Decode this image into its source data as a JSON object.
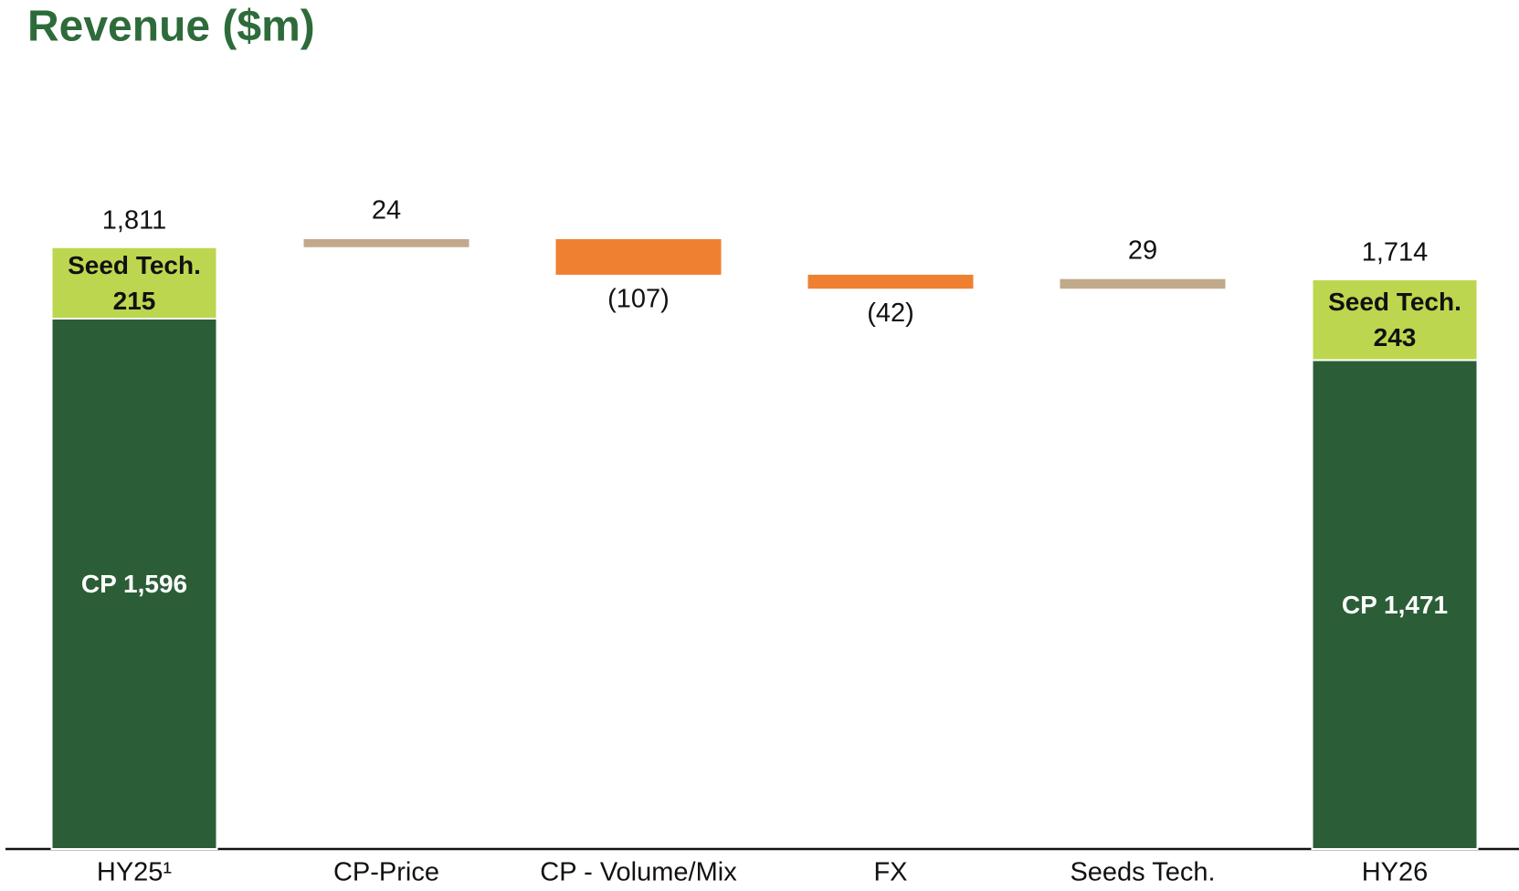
{
  "chart_data": {
    "type": "waterfall",
    "title": "Revenue ($m)",
    "categories": [
      "HY25¹",
      "CP-Price",
      "CP - Volume/Mix",
      "FX",
      "Seeds Tech.",
      "HY26"
    ],
    "series": [
      {
        "color": "#2b5e37",
        "label_color": "#ffffff",
        "values": [
          1596,
          null,
          null,
          null,
          null,
          1471
        ],
        "value_labels": [
          "CP 1,596",
          null,
          null,
          null,
          null,
          "CP 1,471"
        ]
      },
      {
        "color": "#bdd64f",
        "label_color": "#111111",
        "values": [
          215,
          null,
          null,
          null,
          null,
          243
        ],
        "value_labels": [
          "Seed Tech. 215",
          null,
          null,
          null,
          null,
          "Seed Tech. 243"
        ]
      }
    ],
    "changes": {
      "values": [
        null,
        24,
        -107,
        -42,
        29,
        null
      ],
      "value_labels": [
        null,
        "24",
        "(107)",
        "(42)",
        "29",
        null
      ],
      "increase_color": "#c1a98b",
      "decrease_color": "#ef8032"
    },
    "totals": {
      "values": [
        1811,
        null,
        null,
        null,
        null,
        1714
      ],
      "value_labels": [
        "1,811",
        null,
        null,
        null,
        null,
        "1,714"
      ]
    }
  }
}
